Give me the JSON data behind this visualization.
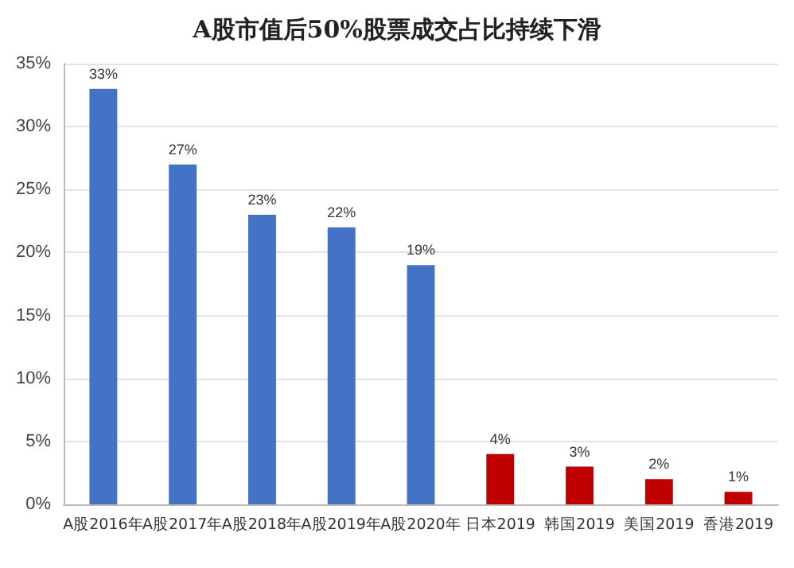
{
  "chart_data": {
    "type": "bar",
    "title": "A股市值后50%股票成交占比持续下滑",
    "categories": [
      "A股2016年",
      "A股2017年",
      "A股2018年",
      "A股2019年",
      "A股2020年",
      "日本2019",
      "韩国2019",
      "美国2019",
      "香港2019"
    ],
    "values": [
      33,
      27,
      23,
      22,
      19,
      4,
      3,
      2,
      1
    ],
    "value_labels": [
      "33%",
      "27%",
      "23%",
      "22%",
      "19%",
      "4%",
      "3%",
      "2%",
      "1%"
    ],
    "colors": [
      "#4472c4",
      "#4472c4",
      "#4472c4",
      "#4472c4",
      "#4472c4",
      "#c00000",
      "#c00000",
      "#c00000",
      "#c00000"
    ],
    "ylim": [
      0,
      35
    ],
    "yticks": [
      {
        "value": 0,
        "label": "0%"
      },
      {
        "value": 5,
        "label": "5%"
      },
      {
        "value": 10,
        "label": "10%"
      },
      {
        "value": 15,
        "label": "15%"
      },
      {
        "value": 20,
        "label": "20%"
      },
      {
        "value": 25,
        "label": "25%"
      },
      {
        "value": 30,
        "label": "30%"
      },
      {
        "value": 35,
        "label": "35%"
      }
    ],
    "grid": "y"
  }
}
